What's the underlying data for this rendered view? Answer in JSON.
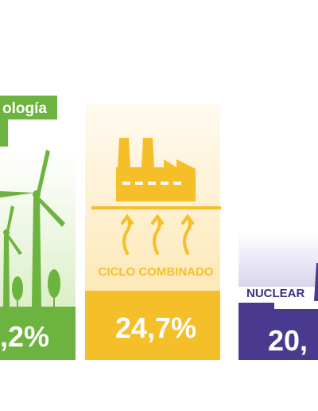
{
  "header": {
    "title": "ología"
  },
  "panels": [
    {
      "value": ",2%"
    },
    {
      "label": "CICLO COMBINADO",
      "value": "24,7%"
    },
    {
      "label": "NUCLEAR",
      "value": "20,"
    }
  ]
}
